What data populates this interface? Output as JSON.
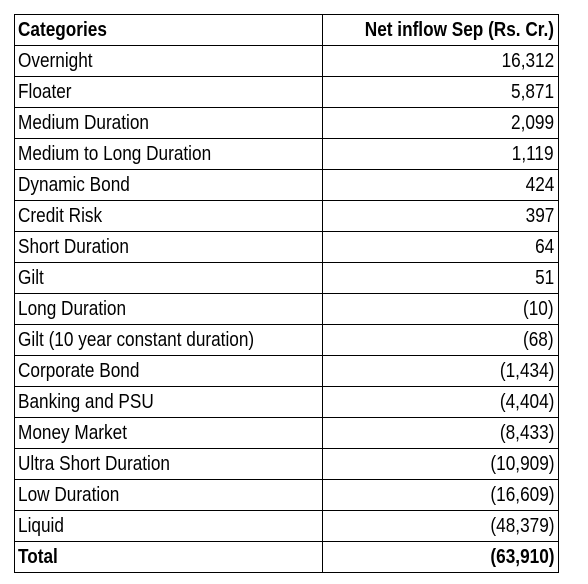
{
  "chart_data": {
    "type": "table",
    "columns": [
      "Categories",
      "Net inflow Sep (Rs. Cr.)"
    ],
    "rows": [
      {
        "category": "Overnight",
        "value": "16,312"
      },
      {
        "category": "Floater",
        "value": "5,871"
      },
      {
        "category": "Medium Duration",
        "value": "2,099"
      },
      {
        "category": "Medium to Long Duration",
        "value": "1,119"
      },
      {
        "category": "Dynamic Bond",
        "value": "424"
      },
      {
        "category": "Credit Risk",
        "value": "397"
      },
      {
        "category": "Short Duration",
        "value": "64"
      },
      {
        "category": "Gilt",
        "value": "51"
      },
      {
        "category": "Long Duration",
        "value": "(10)"
      },
      {
        "category": "Gilt (10 year constant duration)",
        "value": "(68)"
      },
      {
        "category": "Corporate Bond",
        "value": "(1,434)"
      },
      {
        "category": "Banking and PSU",
        "value": "(4,404)"
      },
      {
        "category": "Money Market",
        "value": "(8,433)"
      },
      {
        "category": "Ultra Short Duration",
        "value": "(10,909)"
      },
      {
        "category": "Low Duration",
        "value": "(16,609)"
      },
      {
        "category": "Liquid",
        "value": "(48,379)"
      }
    ],
    "total": {
      "category": "Total",
      "value": "(63,910)"
    }
  }
}
